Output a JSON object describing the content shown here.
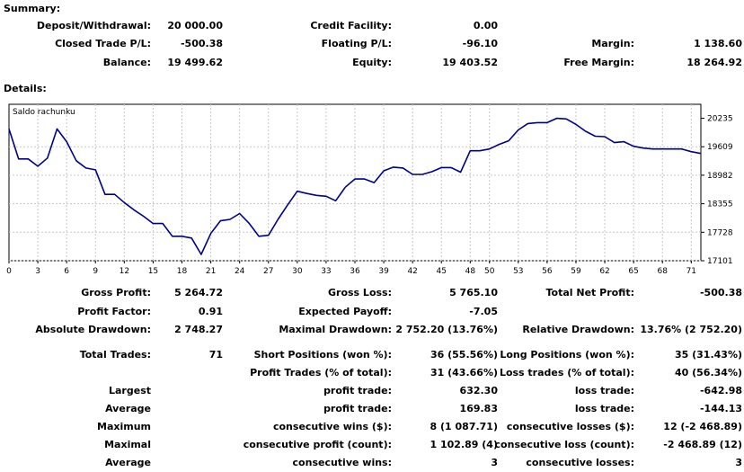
{
  "summary_title": "Summary:",
  "summary": [
    [
      {
        "label": "Deposit/Withdrawal:",
        "value": "20 000.00"
      },
      {
        "label": "Credit Facility:",
        "value": "0.00"
      },
      {
        "label": "",
        "value": ""
      }
    ],
    [
      {
        "label": "Closed Trade P/L:",
        "value": "-500.38"
      },
      {
        "label": "Floating P/L:",
        "value": "-96.10"
      },
      {
        "label": "Margin:",
        "value": "1 138.60"
      }
    ],
    [
      {
        "label": "Balance:",
        "value": "19 499.62"
      },
      {
        "label": "Equity:",
        "value": "19 403.52"
      },
      {
        "label": "Free Margin:",
        "value": "18 264.92"
      }
    ]
  ],
  "details_title": "Details:",
  "chart_data": {
    "type": "line",
    "title": "Saldo rachunku",
    "line_color": "#00008b",
    "grid": true,
    "ylim": [
      17101,
      20543
    ],
    "xlim": [
      0,
      72
    ],
    "y_ticks": [
      "20235",
      "19609",
      "18982",
      "18355",
      "17728",
      "17101"
    ],
    "x_ticks": [
      "0",
      "3",
      "6",
      "9",
      "12",
      "15",
      "18",
      "21",
      "24",
      "27",
      "30",
      "33",
      "36",
      "39",
      "42",
      "45",
      "48",
      "50",
      "53",
      "56",
      "59",
      "62",
      "65",
      "68",
      "71"
    ],
    "x": [
      0,
      1,
      2,
      3,
      4,
      5,
      6,
      7,
      8,
      9,
      10,
      11,
      12,
      13,
      14,
      15,
      16,
      17,
      18,
      19,
      20,
      21,
      22,
      23,
      24,
      25,
      26,
      27,
      28,
      29,
      30,
      31,
      32,
      33,
      34,
      35,
      36,
      37,
      38,
      39,
      40,
      41,
      42,
      43,
      44,
      45,
      46,
      47,
      48,
      49,
      50,
      51,
      52,
      53,
      54,
      55,
      56,
      57,
      58,
      59,
      60,
      61,
      62,
      63,
      64,
      65,
      66,
      67,
      68,
      69,
      70,
      71,
      72
    ],
    "values": [
      20000,
      19340,
      19340,
      19180,
      19360,
      20000,
      19720,
      19300,
      19140,
      19100,
      18560,
      18560,
      18380,
      18220,
      18080,
      17920,
      17920,
      17640,
      17640,
      17600,
      17240,
      17700,
      17980,
      18010,
      18140,
      17920,
      17640,
      17660,
      18010,
      18330,
      18630,
      18580,
      18540,
      18520,
      18420,
      18720,
      18900,
      18900,
      18820,
      19080,
      19160,
      19140,
      19000,
      19000,
      19060,
      19150,
      19150,
      19050,
      19520,
      19520,
      19560,
      19660,
      19740,
      19980,
      20120,
      20140,
      20140,
      20235,
      20220,
      20100,
      19950,
      19840,
      19830,
      19700,
      19720,
      19620,
      19580,
      19560,
      19560,
      19560,
      19560,
      19500,
      19460
    ]
  },
  "stats": [
    [
      {
        "label": "Gross Profit:",
        "value": "5 264.72"
      },
      {
        "label": "Gross Loss:",
        "value": "5 765.10"
      },
      {
        "label": "Total Net Profit:",
        "value": "-500.38"
      }
    ],
    [
      {
        "label": "Profit Factor:",
        "value": "0.91"
      },
      {
        "label": "Expected Payoff:",
        "value": "-7.05"
      },
      {
        "label": "",
        "value": ""
      }
    ],
    [
      {
        "label": "Absolute Drawdown:",
        "value": "2 748.27"
      },
      {
        "label": "Maximal Drawdown:",
        "value": "2 752.20 (13.76%)"
      },
      {
        "label": "Relative Drawdown:",
        "value": "13.76% (2 752.20)"
      }
    ]
  ],
  "trades": [
    [
      {
        "label": "Total Trades:",
        "value": "71"
      },
      {
        "label": "Short Positions (won %):",
        "value": "36 (55.56%)"
      },
      {
        "label": "Long Positions (won %):",
        "value": "35 (31.43%)"
      }
    ],
    [
      {
        "label": "",
        "value": ""
      },
      {
        "label": "Profit Trades (% of total):",
        "value": "31 (43.66%)"
      },
      {
        "label": "Loss trades (% of total):",
        "value": "40 (56.34%)"
      }
    ],
    [
      {
        "label": "Largest",
        "value": ""
      },
      {
        "label": "profit trade:",
        "value": "632.30"
      },
      {
        "label": "loss trade:",
        "value": "-642.98"
      }
    ],
    [
      {
        "label": "Average",
        "value": ""
      },
      {
        "label": "profit trade:",
        "value": "169.83"
      },
      {
        "label": "loss trade:",
        "value": "-144.13"
      }
    ],
    [
      {
        "label": "Maximum",
        "value": ""
      },
      {
        "label": "consecutive wins ($):",
        "value": "8 (1 087.71)"
      },
      {
        "label": "consecutive losses ($):",
        "value": "12 (-2 468.89)"
      }
    ],
    [
      {
        "label": "Maximal",
        "value": ""
      },
      {
        "label": "consecutive profit (count):",
        "value": "1 102.89 (4)"
      },
      {
        "label": "consecutive loss (count):",
        "value": "-2 468.89 (12)"
      }
    ],
    [
      {
        "label": "Average",
        "value": ""
      },
      {
        "label": "consecutive wins:",
        "value": "3"
      },
      {
        "label": "consecutive losses:",
        "value": "3"
      }
    ]
  ]
}
